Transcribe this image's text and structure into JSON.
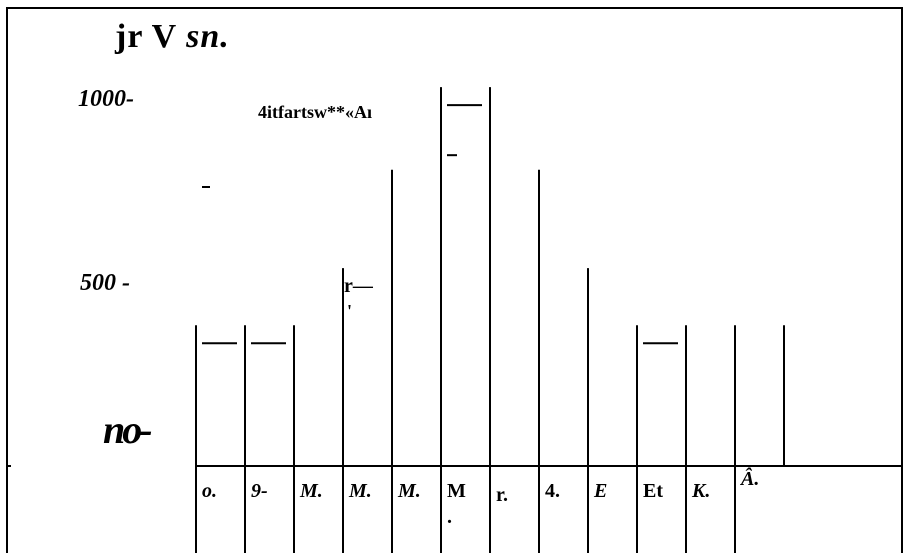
{
  "chart_data": {
    "type": "bar",
    "title": "jr V sn.",
    "title_parts": [
      "jr V ",
      "sn."
    ],
    "y_tick_labels": [
      "1000-",
      "500 -",
      "no-"
    ],
    "ylim": [
      0,
      1200
    ],
    "categories": [
      "o.",
      "9-",
      "M.",
      "M.",
      "M.",
      "M\n.",
      "r.",
      "4.",
      "E",
      "Et",
      "K.",
      "Â."
    ],
    "values": [
      440,
      440,
      440,
      620,
      930,
      1190,
      1190,
      930,
      620,
      440,
      440,
      440
    ],
    "annotations": [
      "4itfartsw**«Aı",
      "-",
      "r—",
      "'"
    ],
    "grid": false,
    "legend": "none"
  }
}
